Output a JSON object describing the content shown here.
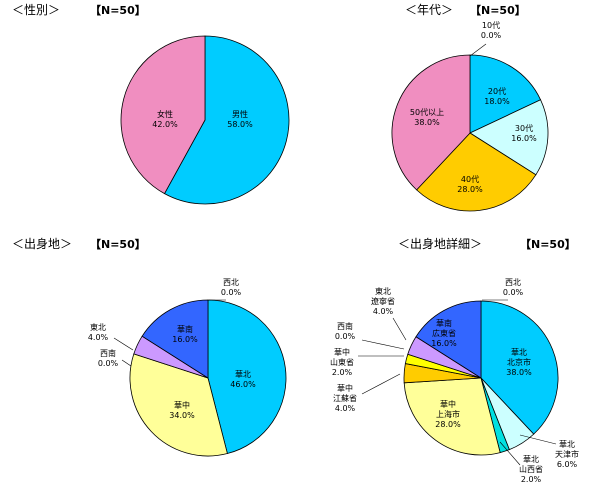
{
  "chart_data": [
    {
      "type": "pie",
      "title": "＜性別＞",
      "n_label": "【N=50】",
      "unit": "%",
      "slices": [
        {
          "name": "男性",
          "value": 58.0,
          "display": "58.0%",
          "color": "#00ccff"
        },
        {
          "name": "女性",
          "value": 42.0,
          "display": "42.0%",
          "color": "#f08ec0"
        }
      ]
    },
    {
      "type": "pie",
      "title": "＜年代＞",
      "n_label": "【N=50】",
      "unit": "%",
      "slices": [
        {
          "name": "10代",
          "value": 0.0,
          "display": "0.0%",
          "color": "#6666ff"
        },
        {
          "name": "20代",
          "value": 18.0,
          "display": "18.0%",
          "color": "#00ccff"
        },
        {
          "name": "30代",
          "value": 16.0,
          "display": "16.0%",
          "color": "#ccffff"
        },
        {
          "name": "40代",
          "value": 28.0,
          "display": "28.0%",
          "color": "#ffcc00"
        },
        {
          "name": "50代以上",
          "value": 38.0,
          "display": "38.0%",
          "color": "#f08ec0"
        }
      ]
    },
    {
      "type": "pie",
      "title": "＜出身地＞",
      "n_label": "【N=50】",
      "unit": "%",
      "slices": [
        {
          "name": "西北",
          "value": 0.0,
          "display": "0.0%",
          "color": "#6666ff"
        },
        {
          "name": "華北",
          "value": 46.0,
          "display": "46.0%",
          "color": "#00ccff"
        },
        {
          "name": "華中",
          "value": 34.0,
          "display": "34.0%",
          "color": "#ffff99"
        },
        {
          "name": "西南",
          "value": 0.0,
          "display": "0.0%",
          "color": "#99ccff"
        },
        {
          "name": "東北",
          "value": 4.0,
          "display": "4.0%",
          "color": "#cc99ff"
        },
        {
          "name": "華南",
          "value": 16.0,
          "display": "16.0%",
          "color": "#3366ff"
        }
      ]
    },
    {
      "type": "pie",
      "title": "＜出身地詳細＞",
      "n_label": "【N=50】",
      "unit": "%",
      "slices": [
        {
          "name": "西北",
          "value": 0.0,
          "display": "0.0%",
          "color": "#6666ff"
        },
        {
          "name": "華北 北京市",
          "value": 38.0,
          "display": "38.0%",
          "color": "#00ccff"
        },
        {
          "name": "華北 天津市",
          "value": 6.0,
          "display": "6.0%",
          "color": "#ccffff"
        },
        {
          "name": "華北 山西省",
          "value": 2.0,
          "display": "2.0%",
          "color": "#00e0e0"
        },
        {
          "name": "華中 上海市",
          "value": 28.0,
          "display": "28.0%",
          "color": "#ffff99"
        },
        {
          "name": "華中 江蘇省",
          "value": 4.0,
          "display": "4.0%",
          "color": "#ffcc00"
        },
        {
          "name": "華中 山東省",
          "value": 2.0,
          "display": "2.0%",
          "color": "#ffff00"
        },
        {
          "name": "西南",
          "value": 0.0,
          "display": "0.0%",
          "color": "#99ccff"
        },
        {
          "name": "東北 遼寧省",
          "value": 4.0,
          "display": "4.0%",
          "color": "#cc99ff"
        },
        {
          "name": "華南 広東省",
          "value": 16.0,
          "display": "16.0%",
          "color": "#3366ff"
        }
      ]
    }
  ]
}
